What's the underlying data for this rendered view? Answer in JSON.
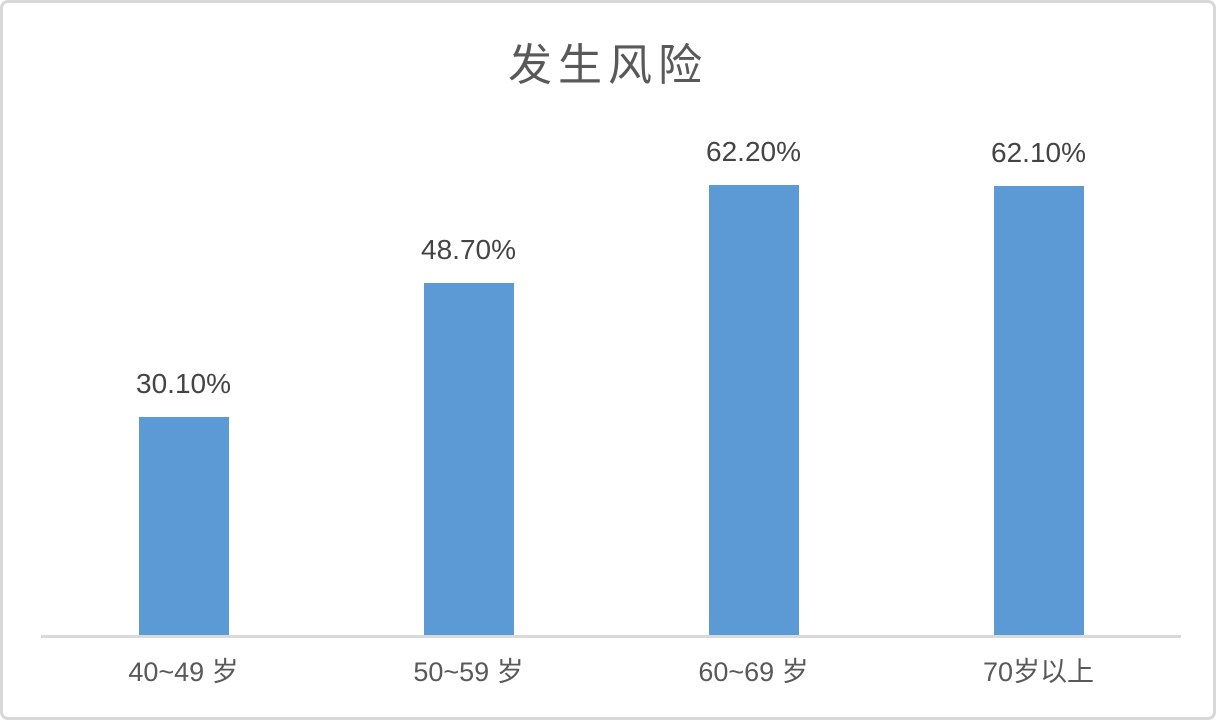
{
  "page": {
    "background": "#ffffff",
    "border_color": "#d8d8d8"
  },
  "chart_data": {
    "type": "bar",
    "title": "发生风险",
    "categories": [
      "40~49 岁",
      "50~59 岁",
      "60~69 岁",
      "70岁以上"
    ],
    "values": [
      30.1,
      48.7,
      62.2,
      62.1
    ],
    "value_labels": [
      "30.10%",
      "48.70%",
      "62.20%",
      "62.10%"
    ],
    "xlabel": "",
    "ylabel": "",
    "ylim": [
      0,
      70
    ],
    "grid": false,
    "legend": "none",
    "y_axis_visible": false,
    "bar_color": "#5b9ad5",
    "axis_line_color": "#d9d9d9",
    "value_label_color": "#444444",
    "category_label_color": "#595959",
    "title_color": "#595959"
  }
}
